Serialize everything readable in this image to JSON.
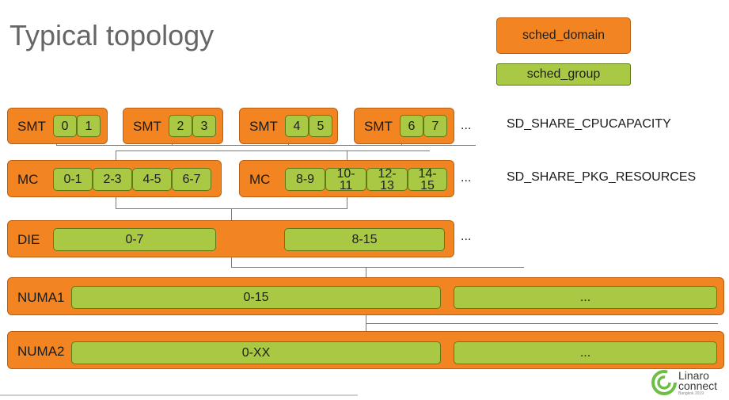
{
  "title": "Typical topology",
  "legend": {
    "domain": "sched_domain",
    "group": "sched_group"
  },
  "rows": {
    "smt": {
      "label": "SMT",
      "boxes": [
        [
          "0",
          "1"
        ],
        [
          "2",
          "3"
        ],
        [
          "4",
          "5"
        ],
        [
          "6",
          "7"
        ]
      ],
      "ellipsis": "...",
      "flag": "SD_SHARE_CPUCAPACITY"
    },
    "mc": {
      "label": "MC",
      "boxes": [
        [
          "0-1",
          "2-3",
          "4-5",
          "6-7"
        ],
        [
          "8-9",
          "10-\n11",
          "12-\n13",
          "14-\n15"
        ]
      ],
      "ellipsis": "...",
      "flag": "SD_SHARE_PKG_RESOURCES"
    },
    "die": {
      "label": "DIE",
      "groups": [
        "0-7",
        "8-15"
      ],
      "ellipsis": "..."
    },
    "numa1": {
      "label": "NUMA1",
      "groups": [
        "0-15",
        "..."
      ]
    },
    "numa2": {
      "label": "NUMA2",
      "groups": [
        "0-XX",
        "..."
      ]
    }
  },
  "logo": {
    "line1": "Linaro",
    "line2": "connect",
    "line3": "Bangkok 2019"
  },
  "colors": {
    "domain": "#f28522",
    "group": "#a9c843",
    "title": "#666666"
  }
}
